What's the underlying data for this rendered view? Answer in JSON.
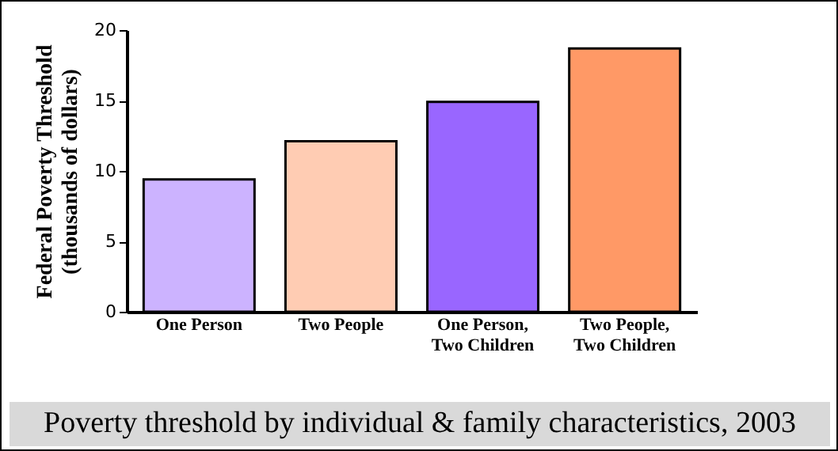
{
  "chart_data": {
    "type": "bar",
    "title": "Poverty threshold by individual & family characteristics, 2003",
    "ylabel": "Federal Poverty Threshold\n(thousands of dollars)",
    "categories": [
      "One Person",
      "Two People",
      "One Person,\nTwo Children",
      "Two People,\nTwo Children"
    ],
    "values": [
      9.4,
      12.1,
      14.9,
      18.7
    ],
    "colors": [
      "#ccb3ff",
      "#ffccb3",
      "#9966ff",
      "#ff9966"
    ],
    "ylim": [
      0,
      20
    ],
    "yticks": [
      0,
      5,
      10,
      15,
      20
    ],
    "grid": false,
    "legend": false
  }
}
